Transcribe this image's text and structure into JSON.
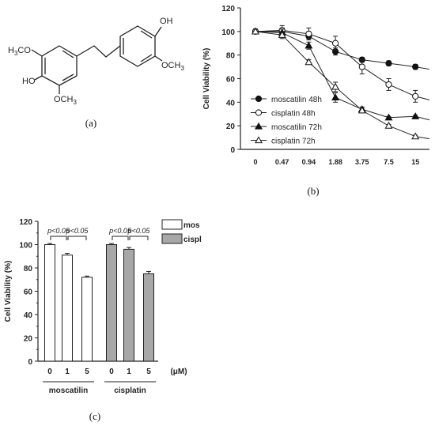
{
  "panels": {
    "a": "(a)",
    "b": "(b)",
    "c": "(c)"
  },
  "structure": {
    "labels": {
      "oh_top": "OH",
      "och3_right": "OCH",
      "h3co_left": "H",
      "h3co_left_rest": "CO",
      "ho_left": "HO",
      "och3_bottom": "OCH",
      "sub3": "3"
    }
  },
  "chart_data": [
    {
      "type": "line",
      "ylabel": "Cell Viability (%)",
      "ylim": [
        0,
        120
      ],
      "yticks": [
        0,
        20,
        40,
        60,
        80,
        100,
        120
      ],
      "categories": [
        "0",
        "0.47",
        "0.94",
        "1.88",
        "3.75",
        "7.5",
        "15"
      ],
      "legend_position": "center-left",
      "series": [
        {
          "name": "moscatilin 48h",
          "marker": "filled-circle",
          "values": [
            100,
            100,
            96,
            83,
            76,
            73,
            70
          ],
          "errors": [
            2,
            3,
            3,
            3,
            2,
            2,
            2
          ],
          "end_value": 68
        },
        {
          "name": "cisplatin 48h",
          "marker": "open-circle",
          "values": [
            100,
            101,
            98,
            90,
            70,
            55,
            45
          ],
          "errors": [
            2,
            4,
            5,
            6,
            6,
            5,
            5
          ],
          "end_value": 42
        },
        {
          "name": "moscatilin 72h",
          "marker": "filled-triangle",
          "values": [
            100,
            99,
            88,
            44,
            34,
            27,
            28
          ],
          "errors": [
            2,
            3,
            3,
            4,
            2,
            1,
            1
          ],
          "end_value": 25
        },
        {
          "name": "cisplatin 72h",
          "marker": "open-triangle",
          "values": [
            100,
            97,
            74,
            53,
            33,
            20,
            11
          ],
          "errors": [
            2,
            3,
            2,
            4,
            2,
            1,
            1
          ],
          "end_value": 9
        }
      ]
    },
    {
      "type": "bar",
      "ylabel": "Cell Viability (%)",
      "ylim": [
        0,
        120
      ],
      "yticks": [
        0,
        20,
        40,
        60,
        80,
        100,
        120
      ],
      "unit": "(μM)",
      "groups": [
        {
          "name": "moscatilin",
          "categories": [
            "0",
            "1",
            "5"
          ],
          "values": [
            100,
            91,
            72
          ],
          "errors": [
            1,
            1.5,
            1
          ],
          "color": "#ffffff"
        },
        {
          "name": "cisplatin",
          "categories": [
            "0",
            "1",
            "5"
          ],
          "values": [
            100,
            96,
            75
          ],
          "errors": [
            1,
            1.5,
            2
          ],
          "color": "#a8a8a8"
        }
      ],
      "annotations": [
        "p<0.05",
        "p<0.05",
        "p<0.05",
        "p<0.05"
      ],
      "legend": [
        {
          "label": "mos",
          "color": "#ffffff"
        },
        {
          "label": "cispl",
          "color": "#a8a8a8"
        }
      ]
    }
  ]
}
